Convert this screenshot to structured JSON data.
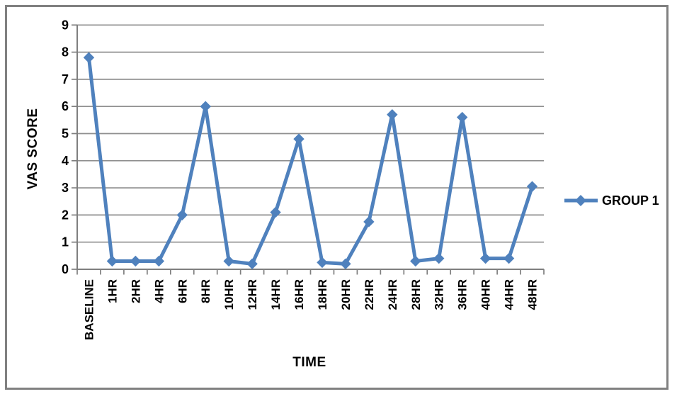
{
  "chart_data": {
    "type": "line",
    "title": "",
    "xlabel": "TIME",
    "ylabel": "VAS SCORE",
    "categories": [
      "BASELINE",
      "1HR",
      "2HR",
      "4HR",
      "6HR",
      "8HR",
      "10HR",
      "12HR",
      "14HR",
      "16HR",
      "18HR",
      "20HR",
      "22HR",
      "24HR",
      "28HR",
      "32HR",
      "36HR",
      "40HR",
      "44HR",
      "48HR"
    ],
    "series": [
      {
        "name": "GROUP 1",
        "values": [
          7.8,
          0.3,
          0.3,
          0.3,
          2.0,
          6.0,
          0.3,
          0.2,
          2.1,
          4.8,
          0.25,
          0.2,
          1.75,
          5.7,
          0.3,
          0.4,
          5.6,
          0.4,
          0.4,
          3.05
        ]
      }
    ],
    "ylim": [
      0,
      9
    ],
    "ytick_step": 1,
    "grid": true,
    "legend_position": "middle-right",
    "marker": "diamond",
    "colors": {
      "series": "#4F81BD",
      "gridline": "#8F8F8F",
      "axis": "#7F7F7F",
      "text": "#000000",
      "frame": "#808080",
      "background": "#FFFFFF"
    }
  }
}
